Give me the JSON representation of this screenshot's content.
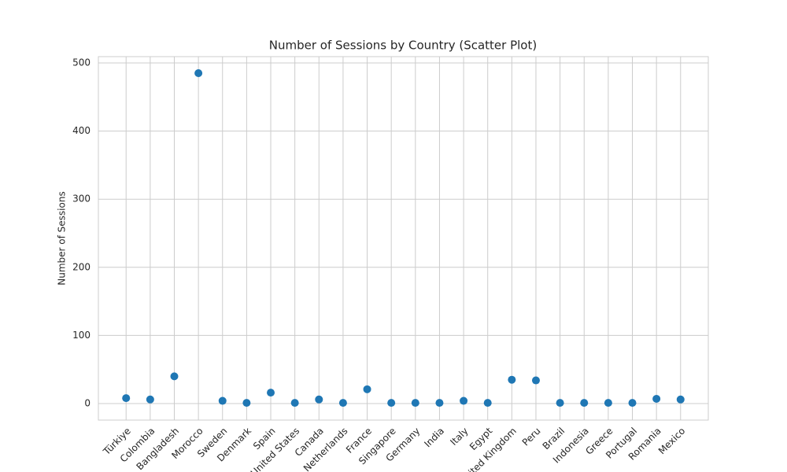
{
  "chart_data": {
    "type": "scatter",
    "title": "Number of Sessions by Country (Scatter Plot)",
    "ylabel": "Number of Sessions",
    "categories": [
      "Türkiye",
      "Colombia",
      "Bangladesh",
      "Morocco",
      "Sweden",
      "Denmark",
      "Spain",
      "United States",
      "Canada",
      "Netherlands",
      "France",
      "Singapore",
      "Germany",
      "India",
      "Italy",
      "Egypt",
      "United Kingdom",
      "Peru",
      "Brazil",
      "Indonesia",
      "Greece",
      "Portugal",
      "Romania",
      "Mexico"
    ],
    "values": [
      8,
      6,
      40,
      485,
      4,
      1,
      16,
      1,
      6,
      1,
      21,
      1,
      1,
      1,
      4,
      1,
      35,
      34,
      1,
      1,
      1,
      1,
      7,
      6
    ],
    "color": "#1f77b4",
    "ylim": [
      -24.25,
      509.25
    ],
    "yticks": [
      0,
      100,
      200,
      300,
      400,
      500
    ],
    "grid": true
  }
}
